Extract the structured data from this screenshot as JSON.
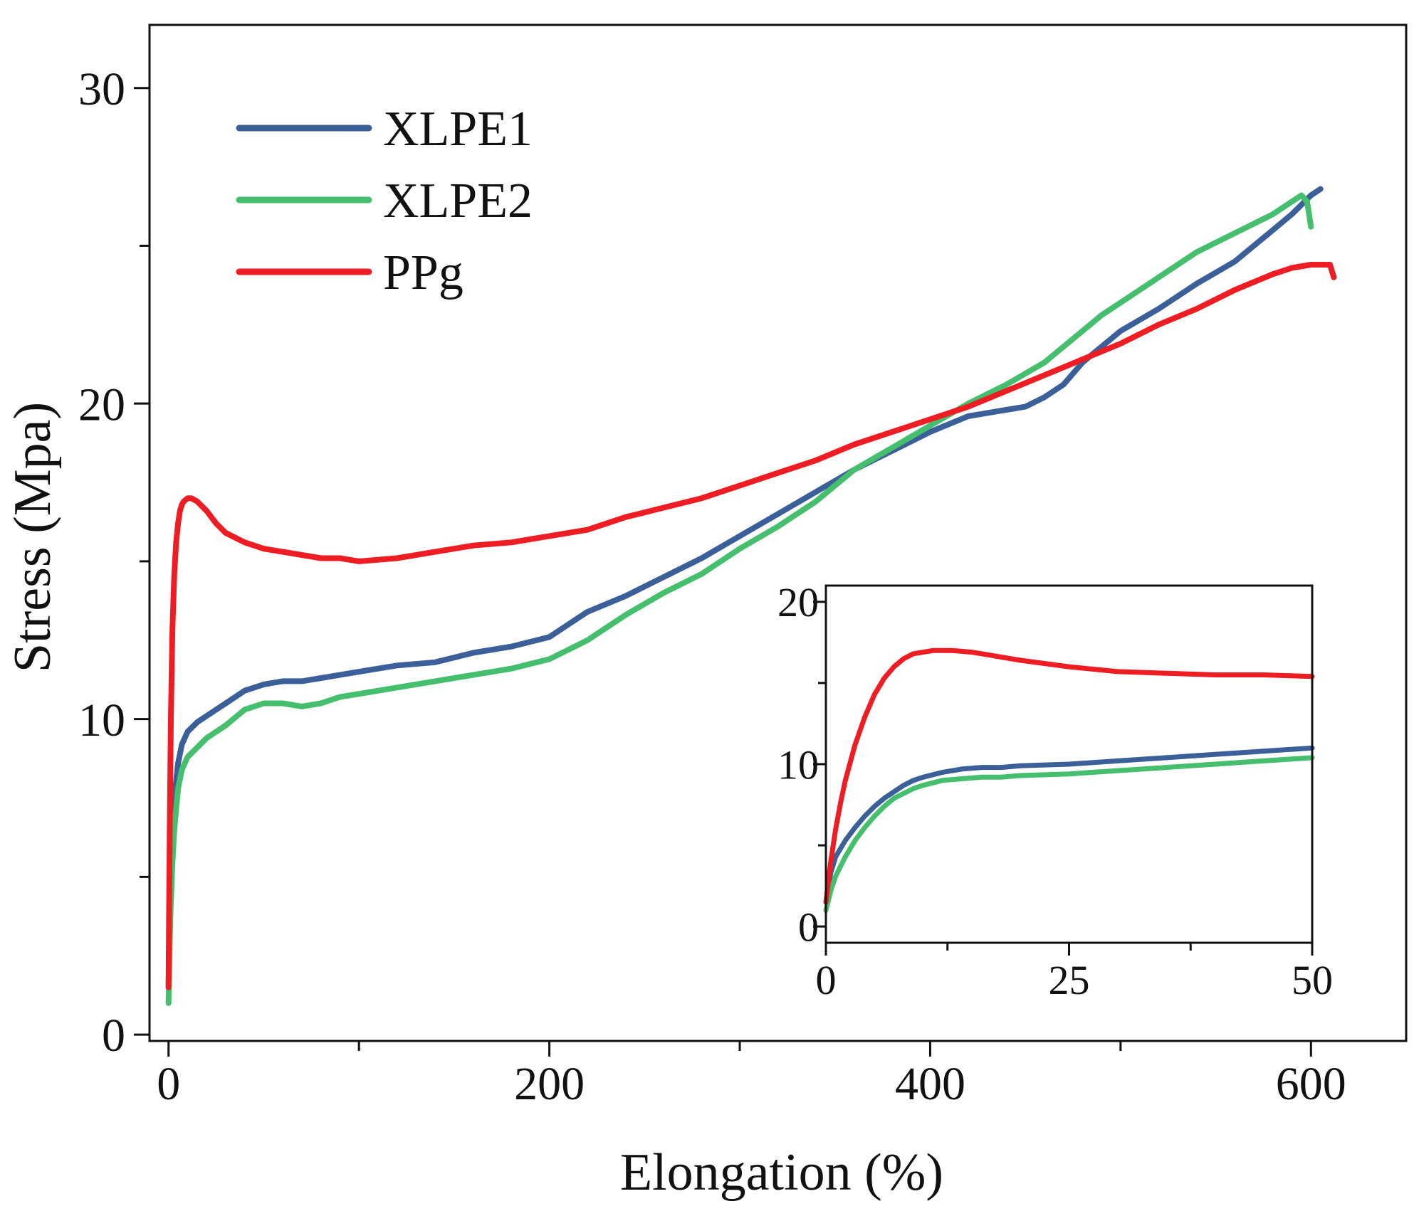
{
  "chart_data": [
    {
      "id": "main",
      "type": "line",
      "title": "",
      "xlabel": "Elongation (%)",
      "ylabel": "Stress (Mpa)",
      "xlim": [
        -10,
        650
      ],
      "ylim": [
        -0.2,
        32
      ],
      "xticks": [
        0,
        200,
        400,
        600
      ],
      "xtick_labels": [
        "0",
        "200",
        "400",
        "600"
      ],
      "x_minor_ticks": [
        100,
        300,
        500
      ],
      "yticks": [
        0,
        10,
        20,
        30
      ],
      "ytick_labels": [
        "0",
        "10",
        "20",
        "30"
      ],
      "y_minor_ticks": [
        5,
        15,
        25
      ],
      "grid": false,
      "legend_position": "top-left",
      "series": [
        {
          "name": "XLPE1",
          "color": "#3b5f98",
          "x": [
            0,
            0.5,
            1,
            2,
            3,
            5,
            7,
            10,
            15,
            20,
            30,
            40,
            50,
            60,
            70,
            80,
            90,
            100,
            120,
            140,
            160,
            180,
            200,
            210,
            220,
            240,
            260,
            280,
            300,
            320,
            340,
            360,
            380,
            400,
            420,
            440,
            450,
            460,
            470,
            480,
            490,
            500,
            520,
            540,
            560,
            580,
            590,
            600,
            605
          ],
          "y": [
            1.5,
            3.5,
            5.0,
            6.5,
            7.5,
            8.6,
            9.2,
            9.6,
            9.9,
            10.1,
            10.5,
            10.9,
            11.1,
            11.2,
            11.2,
            11.3,
            11.4,
            11.5,
            11.7,
            11.8,
            12.1,
            12.3,
            12.6,
            13.0,
            13.4,
            13.9,
            14.5,
            15.1,
            15.8,
            16.5,
            17.2,
            17.9,
            18.5,
            19.1,
            19.6,
            19.8,
            19.9,
            20.2,
            20.6,
            21.3,
            21.8,
            22.3,
            23.0,
            23.8,
            24.5,
            25.5,
            26.0,
            26.6,
            26.8
          ]
        },
        {
          "name": "XLPE2",
          "color": "#45bf6e",
          "x": [
            0,
            0.5,
            1,
            2,
            3,
            5,
            7,
            10,
            15,
            20,
            30,
            40,
            50,
            60,
            70,
            80,
            90,
            100,
            120,
            140,
            160,
            180,
            200,
            220,
            240,
            260,
            280,
            300,
            320,
            340,
            360,
            380,
            400,
            420,
            440,
            460,
            470,
            480,
            490,
            500,
            520,
            540,
            560,
            580,
            590,
            595,
            598,
            600
          ],
          "y": [
            1.0,
            2.5,
            3.8,
            5.4,
            6.5,
            7.8,
            8.4,
            8.8,
            9.1,
            9.4,
            9.8,
            10.3,
            10.5,
            10.5,
            10.4,
            10.5,
            10.7,
            10.8,
            11.0,
            11.2,
            11.4,
            11.6,
            11.9,
            12.5,
            13.3,
            14.0,
            14.6,
            15.4,
            16.1,
            16.9,
            17.9,
            18.6,
            19.3,
            20.0,
            20.6,
            21.3,
            21.8,
            22.3,
            22.8,
            23.2,
            24.0,
            24.8,
            25.4,
            26.0,
            26.4,
            26.6,
            26.4,
            25.6
          ]
        },
        {
          "name": "PPg",
          "color": "#ee1d23",
          "x": [
            0,
            0.3,
            0.7,
            1.2,
            2,
            3,
            4,
            5,
            6,
            7,
            8,
            10,
            12,
            15,
            20,
            25,
            30,
            40,
            50,
            60,
            70,
            80,
            90,
            100,
            120,
            140,
            160,
            180,
            200,
            220,
            240,
            260,
            280,
            300,
            320,
            340,
            360,
            380,
            400,
            420,
            440,
            460,
            480,
            500,
            520,
            540,
            560,
            580,
            590,
            600,
            610,
            612
          ],
          "y": [
            1.5,
            4.0,
            7.0,
            10.0,
            12.8,
            14.6,
            15.6,
            16.2,
            16.6,
            16.8,
            16.9,
            17.0,
            17.0,
            16.9,
            16.6,
            16.2,
            15.9,
            15.6,
            15.4,
            15.3,
            15.2,
            15.1,
            15.1,
            15.0,
            15.1,
            15.3,
            15.5,
            15.6,
            15.8,
            16.0,
            16.4,
            16.7,
            17.0,
            17.4,
            17.8,
            18.2,
            18.7,
            19.1,
            19.5,
            19.9,
            20.4,
            20.9,
            21.4,
            21.9,
            22.5,
            23.0,
            23.6,
            24.1,
            24.3,
            24.4,
            24.4,
            24.0
          ]
        }
      ]
    },
    {
      "id": "inset",
      "type": "line",
      "title": "",
      "xlabel": "",
      "ylabel": "",
      "xlim": [
        0,
        50
      ],
      "ylim": [
        -1,
        21
      ],
      "xticks": [
        0,
        25,
        50
      ],
      "xtick_labels": [
        "0",
        "25",
        "50"
      ],
      "x_minor_ticks": [
        12.5,
        37.5
      ],
      "yticks": [
        0,
        10,
        20
      ],
      "ytick_labels": [
        "0",
        "10",
        "20"
      ],
      "y_minor_ticks": [
        5,
        15
      ],
      "grid": false,
      "legend_position": "none",
      "series": [
        {
          "name": "XLPE1",
          "color": "#3b5f98",
          "x": [
            0,
            0.5,
            1,
            2,
            3,
            4,
            5,
            6,
            7,
            8,
            9,
            10,
            12,
            14,
            16,
            18,
            20,
            25,
            30,
            35,
            40,
            45,
            50
          ],
          "y": [
            1.5,
            3.3,
            4.3,
            5.3,
            6.1,
            6.8,
            7.4,
            7.9,
            8.3,
            8.7,
            9.0,
            9.2,
            9.5,
            9.7,
            9.8,
            9.8,
            9.9,
            10.0,
            10.2,
            10.4,
            10.6,
            10.8,
            11.0
          ]
        },
        {
          "name": "XLPE2",
          "color": "#45bf6e",
          "x": [
            0,
            0.5,
            1,
            2,
            3,
            4,
            5,
            6,
            7,
            8,
            9,
            10,
            12,
            14,
            16,
            18,
            20,
            25,
            30,
            35,
            40,
            45,
            50
          ],
          "y": [
            1.0,
            2.2,
            3.1,
            4.3,
            5.3,
            6.1,
            6.8,
            7.4,
            7.9,
            8.2,
            8.5,
            8.7,
            9.0,
            9.1,
            9.2,
            9.2,
            9.3,
            9.4,
            9.6,
            9.8,
            10.0,
            10.2,
            10.4
          ]
        },
        {
          "name": "PPg",
          "color": "#ee1d23",
          "x": [
            0,
            0.5,
            1,
            1.5,
            2,
            3,
            4,
            5,
            6,
            7,
            8,
            9,
            10,
            11,
            12,
            13,
            15,
            17,
            20,
            25,
            30,
            35,
            40,
            45,
            50
          ],
          "y": [
            1.5,
            4.0,
            6.0,
            7.6,
            9.0,
            11.2,
            12.9,
            14.3,
            15.3,
            16.0,
            16.5,
            16.8,
            16.9,
            17.0,
            17.0,
            17.0,
            16.9,
            16.7,
            16.4,
            16.0,
            15.7,
            15.6,
            15.5,
            15.5,
            15.4
          ]
        }
      ]
    }
  ]
}
